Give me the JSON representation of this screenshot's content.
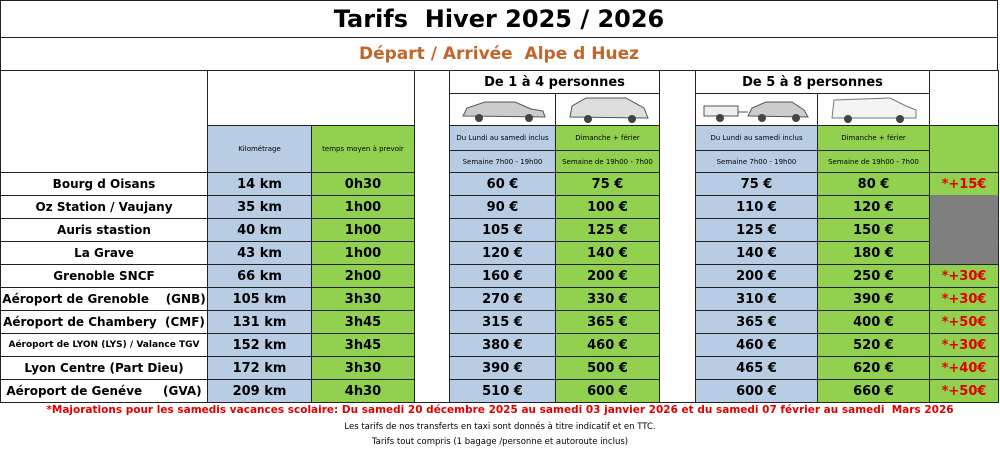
{
  "header": {
    "title": "Tarifs  Hiver 2025 / 2026",
    "subtitle": "Départ / Arrivée  Alpe d Huez"
  },
  "table": {
    "groups": [
      "De 1 à 4 personnes",
      "De 5 à 8 personnes"
    ],
    "columns": [
      "Kilométrage",
      "temps moyen à prevoir",
      "Du Lundi au samedi inclus",
      "Dimanche + férier",
      "Du Lundi au samedi inclus",
      "Dimanche + férier"
    ],
    "periods": [
      "Semaine 7h00 - 19h00",
      "Semaine de 19h00 - 7h00",
      "Semaine 7h00 - 19h00",
      "Semaine de 19h00 - 7h00"
    ],
    "rows": [
      {
        "destination": "Bourg d Oisans",
        "distance": "14 km",
        "duration": "0h30",
        "prices": [
          "60 €",
          "75 €",
          "75 €",
          "80 €"
        ],
        "supplement": "*+15€"
      },
      {
        "destination": "Oz Station / Vaujany",
        "distance": "35 km",
        "duration": "1h00",
        "prices": [
          "90 €",
          "100 €",
          "110 €",
          "120 €"
        ],
        "supplement": null
      },
      {
        "destination": "Auris stastion",
        "distance": "40 km",
        "duration": "1h00",
        "prices": [
          "105 €",
          "125 €",
          "125 €",
          "150 €"
        ],
        "supplement": null
      },
      {
        "destination": "La Grave",
        "distance": "43 km",
        "duration": "1h00",
        "prices": [
          "120 €",
          "140 €",
          "140 €",
          "180 €"
        ],
        "supplement": null
      },
      {
        "destination": "Grenoble SNCF",
        "distance": "66 km",
        "duration": "2h00",
        "prices": [
          "160 €",
          "200 €",
          "200 €",
          "250 €"
        ],
        "supplement": "*+30€"
      },
      {
        "destination": "Aéroport de Grenoble    (GNB)",
        "distance": "105 km",
        "duration": "3h30",
        "prices": [
          "270 €",
          "330 €",
          "310 €",
          "390 €"
        ],
        "supplement": "*+30€"
      },
      {
        "destination": "Aéroport de Chambery  (CMF)",
        "distance": "131 km",
        "duration": "3h45",
        "prices": [
          "315 €",
          "365 €",
          "365 €",
          "400 €"
        ],
        "supplement": "*+50€"
      },
      {
        "destination": "Aéroport de LYON (LYS) / Valance TGV",
        "distance": "152 km",
        "duration": "3h45",
        "prices": [
          "380 €",
          "460 €",
          "460 €",
          "520 €"
        ],
        "supplement": "*+30€"
      },
      {
        "destination": "Lyon Centre (Part Dieu)",
        "distance": "172 km",
        "duration": "3h30",
        "prices": [
          "390 €",
          "500 €",
          "465 €",
          "620 €"
        ],
        "supplement": "*+40€"
      },
      {
        "destination": "Aéroport de Genéve     (GVA)",
        "distance": "209 km",
        "duration": "4h30",
        "prices": [
          "510 €",
          "600 €",
          "600 €",
          "660 €"
        ],
        "supplement": "*+50€"
      }
    ]
  },
  "footer": {
    "note": "*Majorations pour les samedis vacances scolaire: Du samedi 20 décembre 2025 au samedi 03 janvier 2026 et du samedi 07 février au samedi  Mars 2026",
    "lines": [
      "Les tarifs de nos transferts en taxi sont donnés à titre indicatif et en TTC.",
      "Tarifs tout compris (1 bagage /personne et autoroute inclus)"
    ]
  }
}
